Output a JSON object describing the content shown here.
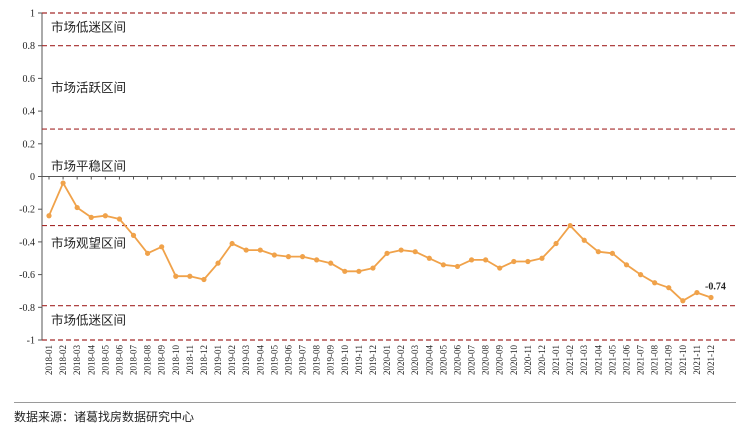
{
  "chart_data": {
    "type": "line",
    "title": "",
    "xlabel": "",
    "ylabel": "",
    "ylim": [
      -1,
      1
    ],
    "yticks": [
      "1",
      "0.8",
      "0.6",
      "0.4",
      "0.2",
      "0",
      "-0.2",
      "-0.4",
      "-0.6",
      "-0.8",
      "-1"
    ],
    "colors": {
      "line": "#f0a24a",
      "threshold": "#a52a2a",
      "axis": "#555555"
    },
    "thresholds": [
      1,
      0.8,
      0.29,
      -0.3,
      -0.79,
      -1
    ],
    "zones": [
      {
        "label": "市场低迷区间",
        "y": 0.91
      },
      {
        "label": "市场活跃区间",
        "y": 0.54
      },
      {
        "label": "市场平稳区间",
        "y": 0.06
      },
      {
        "label": "市场观望区间",
        "y": -0.41
      },
      {
        "label": "市场低迷区间",
        "y": -0.88
      }
    ],
    "x": [
      "2018-01",
      "2018-02",
      "2018-03",
      "2018-04",
      "2018-05",
      "2018-06",
      "2018-07",
      "2018-08",
      "2018-09",
      "2018-10",
      "2018-11",
      "2018-12",
      "2019-01",
      "2019-02",
      "2019-03",
      "2019-04",
      "2019-05",
      "2019-06",
      "2019-07",
      "2019-08",
      "2019-09",
      "2019-10",
      "2019-11",
      "2019-12",
      "2020-01",
      "2020-02",
      "2020-03",
      "2020-04",
      "2020-05",
      "2020-06",
      "2020-07",
      "2020-08",
      "2020-09",
      "2020-10",
      "2020-11",
      "2020-12",
      "2021-01",
      "2021-02",
      "2021-03",
      "2021-04",
      "2021-05",
      "2021-06",
      "2021-07",
      "2021-08",
      "2021-09",
      "2021-10",
      "2021-11",
      "2021-12"
    ],
    "series": [
      {
        "name": "",
        "values": [
          -0.24,
          -0.04,
          -0.19,
          -0.25,
          -0.24,
          -0.26,
          -0.36,
          -0.47,
          -0.43,
          -0.61,
          -0.61,
          -0.63,
          -0.53,
          -0.41,
          -0.45,
          -0.45,
          -0.48,
          -0.49,
          -0.49,
          -0.51,
          -0.53,
          -0.58,
          -0.58,
          -0.56,
          -0.47,
          -0.45,
          -0.46,
          -0.5,
          -0.54,
          -0.55,
          -0.51,
          -0.51,
          -0.56,
          -0.52,
          -0.52,
          -0.5,
          -0.41,
          -0.3,
          -0.39,
          -0.46,
          -0.47,
          -0.54,
          -0.6,
          -0.65,
          -0.68,
          -0.76,
          -0.71,
          -0.74
        ]
      }
    ],
    "data_label": {
      "text": "-0.74",
      "index": 47
    }
  },
  "source_note": "数据来源：诸葛找房数据研究中心"
}
